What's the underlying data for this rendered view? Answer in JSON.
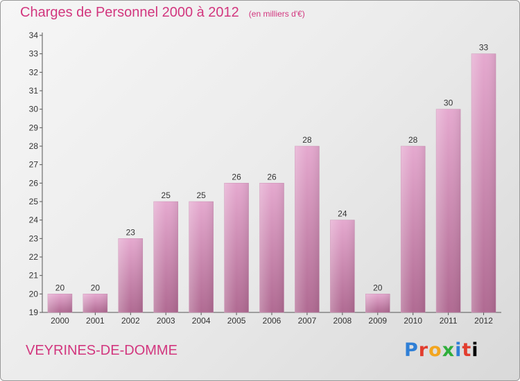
{
  "header": {
    "title": "Charges de Personnel 2000 à 2012",
    "subtitle": "(en milliers d'€)"
  },
  "footer": {
    "commune": "VEYRINES-DE-DOMME",
    "logo": "Proxiti"
  },
  "chart_data": {
    "type": "bar",
    "categories": [
      "2000",
      "2001",
      "2002",
      "2003",
      "2004",
      "2005",
      "2006",
      "2007",
      "2008",
      "2009",
      "2010",
      "2011",
      "2012"
    ],
    "values": [
      20,
      20,
      23,
      25,
      25,
      26,
      26,
      28,
      24,
      20,
      28,
      30,
      33
    ],
    "title": "Charges de Personnel 2000 à 2012",
    "subtitle": "(en milliers d'€)",
    "ylim": [
      19,
      34
    ],
    "yticks": [
      19,
      20,
      21,
      22,
      23,
      24,
      25,
      26,
      27,
      28,
      29,
      30,
      31,
      32,
      33,
      34
    ],
    "grid": false,
    "data_labels": true,
    "colors": {
      "bar_top": "#e5a9cf",
      "bar_bottom": "#b06a92",
      "accent": "#d2367e"
    }
  }
}
